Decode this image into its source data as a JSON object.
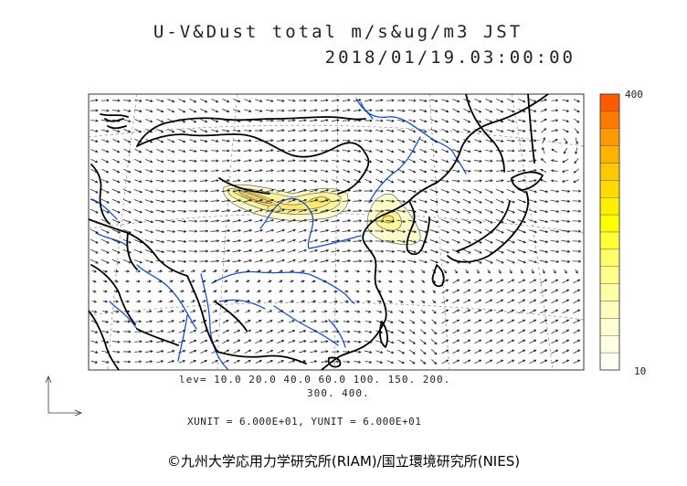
{
  "title_line1": "U-V&Dust total m/s&ug/m3 JST",
  "title_line2": "2018/01/19.03:00:00",
  "colorbar": {
    "max_label": "400",
    "min_label": "10",
    "colors": [
      "#ff5a00",
      "#ff7a00",
      "#ff9a00",
      "#ffb200",
      "#ffc800",
      "#ffdc00",
      "#ffee00",
      "#ffff00",
      "#ffff3a",
      "#ffff6a",
      "#ffff8c",
      "#ffffa8",
      "#ffffbe",
      "#ffffd2",
      "#ffffe4",
      "#fffff2"
    ]
  },
  "contour_levels": {
    "line1": "lev= 10.0 20.0 40.0 60.0 100. 150. 200.",
    "line2": "300. 400."
  },
  "vector_units": "XUNIT = 6.000E+01, YUNIT = 6.000E+01",
  "credit": "©九州大学応用力学研究所(RIAM)/国立環境研究所(NIES)"
}
